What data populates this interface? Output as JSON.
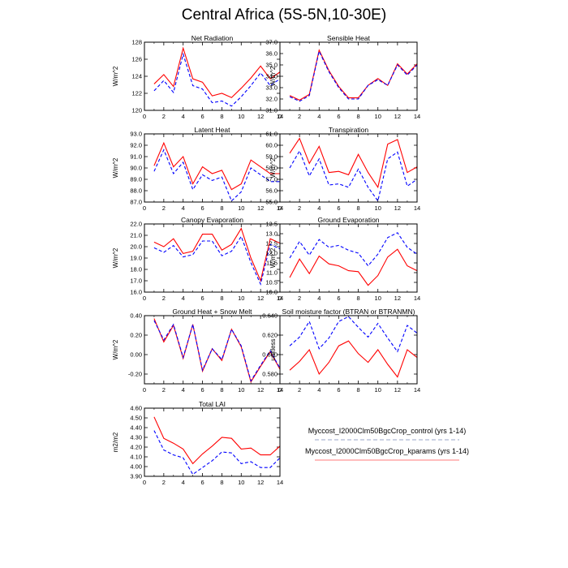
{
  "figure": {
    "title": "Central Africa (5S-5N,10-30E)"
  },
  "legend": {
    "entries": [
      {
        "label": "Myccost_I2000Clm50BgcCrop_control (yrs 1-14)",
        "color": "#0000ff",
        "dash": "dashed"
      },
      {
        "label": "Myccost_I2000Clm50BgcCrop_kparams (yrs 1-14)",
        "color": "#ff0000",
        "dash": "solid"
      }
    ]
  },
  "chart_data": [
    {
      "type": "line",
      "title": "Net Radiation",
      "ylabel": "W/m^2",
      "xlim": [
        0,
        14
      ],
      "xticks": [
        "0",
        "2",
        "4",
        "6",
        "8",
        "10",
        "12",
        "14"
      ],
      "ylim": [
        120,
        128
      ],
      "yticks": [
        "120",
        "122",
        "124",
        "126",
        "128"
      ],
      "x": [
        1,
        2,
        3,
        4,
        5,
        6,
        7,
        8,
        9,
        10,
        11,
        12,
        13,
        14
      ],
      "series": [
        {
          "name": "Myccost_I2000Clm50BgcCrop_kparams (yrs 1-14)",
          "color": "#ff0000",
          "dash": "solid",
          "values": [
            123.1,
            124.2,
            122.8,
            127.3,
            123.7,
            123.3,
            121.7,
            122.0,
            121.5,
            122.6,
            123.8,
            125.2,
            123.7,
            124.5
          ]
        },
        {
          "name": "Myccost_I2000Clm50BgcCrop_control (yrs 1-14)",
          "color": "#0000ff",
          "dash": "dashed",
          "values": [
            122.3,
            123.5,
            122.1,
            126.6,
            122.9,
            122.5,
            120.9,
            121.1,
            120.5,
            121.6,
            122.9,
            124.4,
            122.9,
            123.7
          ]
        }
      ]
    },
    {
      "type": "line",
      "title": "Sensible Heat",
      "ylabel": "W/m^2",
      "xlim": [
        0,
        14
      ],
      "xticks": [
        "0",
        "2",
        "4",
        "6",
        "8",
        "10",
        "12",
        "14"
      ],
      "ylim": [
        31,
        37
      ],
      "yticks": [
        "31.0",
        "32.0",
        "33.0",
        "34.0",
        "35.0",
        "36.0",
        "37.0"
      ],
      "x": [
        1,
        2,
        3,
        4,
        5,
        6,
        7,
        8,
        9,
        10,
        11,
        12,
        13,
        14
      ],
      "series": [
        {
          "name": "Myccost_I2000Clm50BgcCrop_kparams (yrs 1-14)",
          "color": "#ff0000",
          "dash": "solid",
          "values": [
            32.3,
            31.9,
            32.4,
            36.3,
            34.5,
            33.1,
            32.1,
            32.1,
            33.2,
            33.8,
            33.2,
            35.1,
            34.2,
            35.1
          ]
        },
        {
          "name": "Myccost_I2000Clm50BgcCrop_control (yrs 1-14)",
          "color": "#0000ff",
          "dash": "dashed",
          "values": [
            32.2,
            31.8,
            32.3,
            36.2,
            34.4,
            33.0,
            32.0,
            32.0,
            33.2,
            33.7,
            33.2,
            35.0,
            34.1,
            35.0
          ]
        }
      ]
    },
    {
      "type": "line",
      "title": "Latent Heat",
      "ylabel": "W/m^2",
      "xlim": [
        0,
        14
      ],
      "xticks": [
        "0",
        "2",
        "4",
        "6",
        "8",
        "10",
        "12",
        "14"
      ],
      "ylim": [
        87,
        93
      ],
      "yticks": [
        "87.0",
        "88.0",
        "89.0",
        "90.0",
        "91.0",
        "92.0",
        "93.0"
      ],
      "x": [
        1,
        2,
        3,
        4,
        5,
        6,
        7,
        8,
        9,
        10,
        11,
        12,
        13,
        14
      ],
      "series": [
        {
          "name": "Myccost_I2000Clm50BgcCrop_kparams (yrs 1-14)",
          "color": "#ff0000",
          "dash": "solid",
          "values": [
            90.2,
            92.2,
            90.1,
            91.0,
            88.6,
            90.1,
            89.5,
            89.8,
            88.1,
            88.6,
            90.7,
            90.1,
            89.5,
            89.5
          ]
        },
        {
          "name": "Myccost_I2000Clm50BgcCrop_control (yrs 1-14)",
          "color": "#0000ff",
          "dash": "dashed",
          "values": [
            89.7,
            91.6,
            89.5,
            90.5,
            88.1,
            89.4,
            88.9,
            89.2,
            87.1,
            87.9,
            90.0,
            89.4,
            88.8,
            88.8
          ]
        }
      ]
    },
    {
      "type": "line",
      "title": "Transpiration",
      "ylabel": "W/m^2",
      "xlim": [
        0,
        14
      ],
      "xticks": [
        "0",
        "2",
        "4",
        "6",
        "8",
        "10",
        "12",
        "14"
      ],
      "ylim": [
        55,
        61
      ],
      "yticks": [
        "55.0",
        "56.0",
        "57.0",
        "58.0",
        "59.0",
        "60.0",
        "61.0"
      ],
      "x": [
        1,
        2,
        3,
        4,
        5,
        6,
        7,
        8,
        9,
        10,
        11,
        12,
        13,
        14
      ],
      "series": [
        {
          "name": "Myccost_I2000Clm50BgcCrop_kparams (yrs 1-14)",
          "color": "#ff0000",
          "dash": "solid",
          "values": [
            59.3,
            60.6,
            58.4,
            59.9,
            57.6,
            57.7,
            57.4,
            59.2,
            57.6,
            56.3,
            60.1,
            60.5,
            57.6,
            58.1
          ]
        },
        {
          "name": "Myccost_I2000Clm50BgcCrop_control (yrs 1-14)",
          "color": "#0000ff",
          "dash": "dashed",
          "values": [
            58.0,
            59.5,
            57.3,
            58.8,
            56.5,
            56.6,
            56.3,
            57.9,
            56.3,
            55.1,
            58.8,
            59.4,
            56.4,
            57.0
          ]
        }
      ]
    },
    {
      "type": "line",
      "title": "Canopy Evaporation",
      "ylabel": "W/m^2",
      "xlim": [
        0,
        14
      ],
      "xticks": [
        "0",
        "2",
        "4",
        "6",
        "8",
        "10",
        "12",
        "14"
      ],
      "ylim": [
        16,
        22
      ],
      "yticks": [
        "16.0",
        "17.0",
        "18.0",
        "19.0",
        "20.0",
        "21.0",
        "22.0"
      ],
      "x": [
        1,
        2,
        3,
        4,
        5,
        6,
        7,
        8,
        9,
        10,
        11,
        12,
        13,
        14
      ],
      "series": [
        {
          "name": "Myccost_I2000Clm50BgcCrop_kparams (yrs 1-14)",
          "color": "#ff0000",
          "dash": "solid",
          "values": [
            20.4,
            20.0,
            20.7,
            19.4,
            19.6,
            21.1,
            21.1,
            19.7,
            20.2,
            21.6,
            19.0,
            17.0,
            20.7,
            20.3
          ]
        },
        {
          "name": "Myccost_I2000Clm50BgcCrop_control (yrs 1-14)",
          "color": "#0000ff",
          "dash": "dashed",
          "values": [
            19.9,
            19.5,
            20.1,
            19.1,
            19.3,
            20.5,
            20.5,
            19.2,
            19.6,
            20.9,
            18.6,
            16.7,
            20.2,
            19.8
          ]
        }
      ]
    },
    {
      "type": "line",
      "title": "Ground Evaporation",
      "ylabel": "W/m^2",
      "xlim": [
        0,
        14
      ],
      "xticks": [
        "0",
        "2",
        "4",
        "6",
        "8",
        "10",
        "12",
        "14"
      ],
      "ylim": [
        10,
        13.5
      ],
      "yticks": [
        "10.0",
        "10.5",
        "11.0",
        "11.5",
        "12.0",
        "12.5",
        "13.0",
        "13.5"
      ],
      "x": [
        1,
        2,
        3,
        4,
        5,
        6,
        7,
        8,
        9,
        10,
        11,
        12,
        13,
        14
      ],
      "series": [
        {
          "name": "Myccost_I2000Clm50BgcCrop_kparams (yrs 1-14)",
          "color": "#ff0000",
          "dash": "solid",
          "values": [
            10.75,
            11.7,
            10.95,
            11.85,
            11.45,
            11.35,
            11.1,
            11.05,
            10.35,
            10.85,
            11.8,
            12.2,
            11.35,
            11.1
          ]
        },
        {
          "name": "Myccost_I2000Clm50BgcCrop_control (yrs 1-14)",
          "color": "#0000ff",
          "dash": "dashed",
          "values": [
            11.75,
            12.6,
            11.9,
            12.7,
            12.3,
            12.4,
            12.15,
            12.0,
            11.35,
            11.95,
            12.8,
            13.05,
            12.3,
            11.95
          ]
        }
      ]
    },
    {
      "type": "line",
      "title": "Ground Heat + Snow Melt",
      "ylabel": "W/m^2",
      "xlim": [
        0,
        14
      ],
      "xticks": [
        "0",
        "2",
        "4",
        "6",
        "8",
        "10",
        "12",
        "14"
      ],
      "ylim": [
        -0.3,
        0.4
      ],
      "yticks": [
        "-0.20",
        "0.00",
        "0.20",
        "0.40"
      ],
      "ytickvals": [
        -0.2,
        0.0,
        0.2,
        0.4
      ],
      "x": [
        1,
        2,
        3,
        4,
        5,
        6,
        7,
        8,
        9,
        10,
        11,
        12,
        13,
        14
      ],
      "series": [
        {
          "name": "Myccost_I2000Clm50BgcCrop_kparams (yrs 1-14)",
          "color": "#ff0000",
          "dash": "solid",
          "values": [
            0.37,
            0.13,
            0.3,
            -0.04,
            0.31,
            -0.17,
            0.06,
            -0.06,
            0.26,
            0.08,
            -0.28,
            -0.12,
            0.03,
            -0.15
          ]
        },
        {
          "name": "Myccost_I2000Clm50BgcCrop_control (yrs 1-14)",
          "color": "#0000ff",
          "dash": "dashed",
          "values": [
            0.35,
            0.15,
            0.31,
            -0.03,
            0.31,
            -0.16,
            0.06,
            -0.05,
            0.26,
            0.09,
            -0.27,
            -0.11,
            0.04,
            -0.14
          ]
        }
      ]
    },
    {
      "type": "line",
      "title": "Soil moisture factor (BTRAN or BTRANMN)",
      "ylabel": "unitless",
      "xlim": [
        0,
        14
      ],
      "xticks": [
        "0",
        "2",
        "4",
        "6",
        "8",
        "10",
        "12",
        "14"
      ],
      "ylim": [
        0.57,
        0.64
      ],
      "yticks": [
        "0.580",
        "0.600",
        "0.620",
        "0.640"
      ],
      "ytickvals": [
        0.58,
        0.6,
        0.62,
        0.64
      ],
      "x": [
        1,
        2,
        3,
        4,
        5,
        6,
        7,
        8,
        9,
        10,
        11,
        12,
        13,
        14
      ],
      "series": [
        {
          "name": "Myccost_I2000Clm50BgcCrop_kparams (yrs 1-14)",
          "color": "#ff0000",
          "dash": "solid",
          "values": [
            0.584,
            0.593,
            0.605,
            0.58,
            0.592,
            0.609,
            0.614,
            0.601,
            0.592,
            0.605,
            0.59,
            0.577,
            0.605,
            0.597
          ]
        },
        {
          "name": "Myccost_I2000Clm50BgcCrop_control (yrs 1-14)",
          "color": "#0000ff",
          "dash": "dashed",
          "values": [
            0.609,
            0.618,
            0.634,
            0.606,
            0.617,
            0.634,
            0.639,
            0.628,
            0.618,
            0.632,
            0.617,
            0.603,
            0.63,
            0.622
          ]
        }
      ]
    },
    {
      "type": "line",
      "title": "Total LAI",
      "ylabel": "m2/m2",
      "xlim": [
        0,
        14
      ],
      "xticks": [
        "0",
        "2",
        "4",
        "6",
        "8",
        "10",
        "12",
        "14"
      ],
      "ylim": [
        3.9,
        4.6
      ],
      "yticks": [
        "3.90",
        "4.00",
        "4.10",
        "4.20",
        "4.30",
        "4.40",
        "4.50",
        "4.60"
      ],
      "x": [
        1,
        2,
        3,
        4,
        5,
        6,
        7,
        8,
        9,
        10,
        11,
        12,
        13,
        14
      ],
      "series": [
        {
          "name": "Myccost_I2000Clm50BgcCrop_kparams (yrs 1-14)",
          "color": "#ff0000",
          "dash": "solid",
          "values": [
            4.51,
            4.29,
            4.24,
            4.18,
            4.03,
            4.13,
            4.21,
            4.3,
            4.29,
            4.18,
            4.19,
            4.12,
            4.12,
            4.21
          ]
        },
        {
          "name": "Myccost_I2000Clm50BgcCrop_control (yrs 1-14)",
          "color": "#0000ff",
          "dash": "dashed",
          "values": [
            4.37,
            4.17,
            4.12,
            4.09,
            3.92,
            3.99,
            4.06,
            4.15,
            4.14,
            4.03,
            4.05,
            3.99,
            3.99,
            4.09
          ]
        }
      ]
    }
  ]
}
